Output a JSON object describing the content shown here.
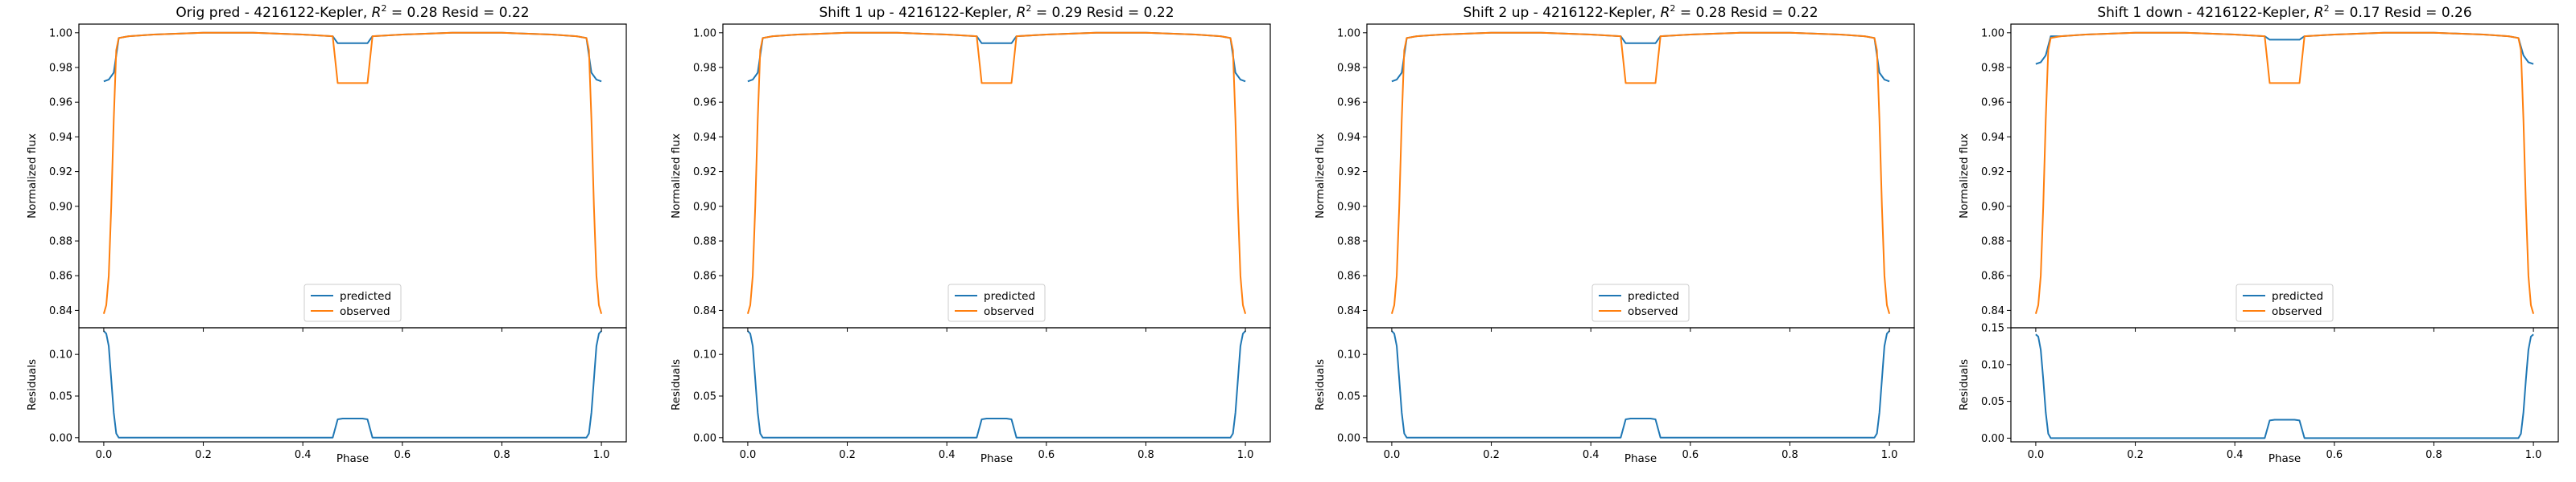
{
  "colors": {
    "predicted": "#1f77b4",
    "observed": "#ff7f0e"
  },
  "legend": {
    "placement": "lower center",
    "items": [
      "predicted",
      "observed"
    ]
  },
  "labels": {
    "xlabel": "Phase",
    "ylabel_top": "Normalized flux",
    "ylabel_bottom": "Residuals"
  },
  "chart_data": [
    {
      "type": "line",
      "title_prefix": "Orig pred - 4216122-Kepler, ",
      "r2": "0.28",
      "resid_text": " Resid = 0.22",
      "xlim": [
        -0.05,
        1.05
      ],
      "x_ticks": [
        "0.0",
        "0.2",
        "0.4",
        "0.6",
        "0.8",
        "1.0"
      ],
      "flux_ylim": [
        0.83,
        1.005
      ],
      "flux_ticks": [
        "0.84",
        "0.86",
        "0.88",
        "0.90",
        "0.92",
        "0.94",
        "0.96",
        "0.98",
        "1.00"
      ],
      "resid_ylim": [
        -0.005,
        0.132
      ],
      "resid_ticks": [
        "0.00",
        "0.05",
        "0.10"
      ],
      "series": [
        {
          "name": "predicted",
          "x": [
            0.0,
            0.01,
            0.02,
            0.03,
            0.05,
            0.1,
            0.2,
            0.3,
            0.4,
            0.46,
            0.47,
            0.48,
            0.5,
            0.52,
            0.53,
            0.54,
            0.6,
            0.7,
            0.8,
            0.9,
            0.95,
            0.97,
            0.98,
            0.99,
            1.0
          ],
          "y": [
            0.972,
            0.973,
            0.977,
            0.997,
            0.998,
            0.999,
            1.0,
            1.0,
            0.999,
            0.998,
            0.994,
            0.994,
            0.994,
            0.994,
            0.994,
            0.998,
            0.999,
            1.0,
            1.0,
            0.999,
            0.998,
            0.997,
            0.977,
            0.973,
            0.972
          ]
        },
        {
          "name": "observed",
          "x": [
            0.0,
            0.005,
            0.01,
            0.015,
            0.02,
            0.025,
            0.03,
            0.05,
            0.1,
            0.2,
            0.3,
            0.4,
            0.46,
            0.47,
            0.48,
            0.5,
            0.52,
            0.53,
            0.54,
            0.6,
            0.7,
            0.8,
            0.9,
            0.95,
            0.97,
            0.975,
            0.98,
            0.985,
            0.99,
            0.995,
            1.0
          ],
          "y": [
            0.838,
            0.843,
            0.86,
            0.9,
            0.95,
            0.99,
            0.997,
            0.998,
            0.999,
            1.0,
            1.0,
            0.999,
            0.998,
            0.971,
            0.971,
            0.971,
            0.971,
            0.971,
            0.998,
            0.999,
            1.0,
            1.0,
            0.999,
            0.998,
            0.997,
            0.99,
            0.95,
            0.9,
            0.86,
            0.843,
            0.838
          ]
        },
        {
          "name": "residual",
          "x": [
            0.0,
            0.005,
            0.01,
            0.015,
            0.02,
            0.025,
            0.03,
            0.05,
            0.2,
            0.4,
            0.46,
            0.47,
            0.48,
            0.5,
            0.52,
            0.53,
            0.54,
            0.6,
            0.8,
            0.95,
            0.97,
            0.975,
            0.98,
            0.985,
            0.99,
            0.995,
            1.0
          ],
          "y": [
            0.128,
            0.125,
            0.11,
            0.07,
            0.03,
            0.005,
            0.0,
            0.0,
            0.0,
            0.0,
            0.0,
            0.022,
            0.023,
            0.023,
            0.023,
            0.022,
            0.0,
            0.0,
            0.0,
            0.0,
            0.0,
            0.005,
            0.03,
            0.07,
            0.11,
            0.125,
            0.128
          ]
        }
      ]
    },
    {
      "type": "line",
      "title_prefix": "Shift 1 up - 4216122-Kepler, ",
      "r2": "0.29",
      "resid_text": " Resid = 0.22",
      "xlim": [
        -0.05,
        1.05
      ],
      "x_ticks": [
        "0.0",
        "0.2",
        "0.4",
        "0.6",
        "0.8",
        "1.0"
      ],
      "flux_ylim": [
        0.83,
        1.005
      ],
      "flux_ticks": [
        "0.84",
        "0.86",
        "0.88",
        "0.90",
        "0.92",
        "0.94",
        "0.96",
        "0.98",
        "1.00"
      ],
      "resid_ylim": [
        -0.005,
        0.132
      ],
      "resid_ticks": [
        "0.00",
        "0.05",
        "0.10"
      ],
      "series": [
        {
          "name": "predicted",
          "x": [
            0.0,
            0.01,
            0.02,
            0.03,
            0.05,
            0.1,
            0.2,
            0.3,
            0.4,
            0.46,
            0.47,
            0.48,
            0.5,
            0.52,
            0.53,
            0.54,
            0.6,
            0.7,
            0.8,
            0.9,
            0.95,
            0.97,
            0.98,
            0.99,
            1.0
          ],
          "y": [
            0.972,
            0.973,
            0.977,
            0.997,
            0.998,
            0.999,
            1.0,
            1.0,
            0.999,
            0.998,
            0.994,
            0.994,
            0.994,
            0.994,
            0.994,
            0.998,
            0.999,
            1.0,
            1.0,
            0.999,
            0.998,
            0.997,
            0.977,
            0.973,
            0.972
          ]
        },
        {
          "name": "observed",
          "x": [
            0.0,
            0.005,
            0.01,
            0.015,
            0.02,
            0.025,
            0.03,
            0.05,
            0.1,
            0.2,
            0.3,
            0.4,
            0.46,
            0.47,
            0.48,
            0.5,
            0.52,
            0.53,
            0.54,
            0.6,
            0.7,
            0.8,
            0.9,
            0.95,
            0.97,
            0.975,
            0.98,
            0.985,
            0.99,
            0.995,
            1.0
          ],
          "y": [
            0.838,
            0.843,
            0.86,
            0.9,
            0.95,
            0.99,
            0.997,
            0.998,
            0.999,
            1.0,
            1.0,
            0.999,
            0.998,
            0.971,
            0.971,
            0.971,
            0.971,
            0.971,
            0.998,
            0.999,
            1.0,
            1.0,
            0.999,
            0.998,
            0.997,
            0.99,
            0.95,
            0.9,
            0.86,
            0.843,
            0.838
          ]
        },
        {
          "name": "residual",
          "x": [
            0.0,
            0.005,
            0.01,
            0.015,
            0.02,
            0.025,
            0.03,
            0.05,
            0.2,
            0.4,
            0.46,
            0.47,
            0.48,
            0.5,
            0.52,
            0.53,
            0.54,
            0.6,
            0.8,
            0.95,
            0.97,
            0.975,
            0.98,
            0.985,
            0.99,
            0.995,
            1.0
          ],
          "y": [
            0.128,
            0.125,
            0.11,
            0.07,
            0.03,
            0.005,
            0.0,
            0.0,
            0.0,
            0.0,
            0.0,
            0.022,
            0.023,
            0.023,
            0.023,
            0.022,
            0.0,
            0.0,
            0.0,
            0.0,
            0.0,
            0.005,
            0.03,
            0.07,
            0.11,
            0.125,
            0.128
          ]
        }
      ]
    },
    {
      "type": "line",
      "title_prefix": "Shift 2 up - 4216122-Kepler, ",
      "r2": "0.28",
      "resid_text": " Resid = 0.22",
      "xlim": [
        -0.05,
        1.05
      ],
      "x_ticks": [
        "0.0",
        "0.2",
        "0.4",
        "0.6",
        "0.8",
        "1.0"
      ],
      "flux_ylim": [
        0.83,
        1.005
      ],
      "flux_ticks": [
        "0.84",
        "0.86",
        "0.88",
        "0.90",
        "0.92",
        "0.94",
        "0.96",
        "0.98",
        "1.00"
      ],
      "resid_ylim": [
        -0.005,
        0.132
      ],
      "resid_ticks": [
        "0.00",
        "0.05",
        "0.10"
      ],
      "series": [
        {
          "name": "predicted",
          "x": [
            0.0,
            0.01,
            0.02,
            0.03,
            0.05,
            0.1,
            0.2,
            0.3,
            0.4,
            0.46,
            0.47,
            0.48,
            0.5,
            0.52,
            0.53,
            0.54,
            0.6,
            0.7,
            0.8,
            0.9,
            0.95,
            0.97,
            0.98,
            0.99,
            1.0
          ],
          "y": [
            0.972,
            0.973,
            0.977,
            0.997,
            0.998,
            0.999,
            1.0,
            1.0,
            0.999,
            0.998,
            0.994,
            0.994,
            0.994,
            0.994,
            0.994,
            0.998,
            0.999,
            1.0,
            1.0,
            0.999,
            0.998,
            0.997,
            0.977,
            0.973,
            0.972
          ]
        },
        {
          "name": "observed",
          "x": [
            0.0,
            0.005,
            0.01,
            0.015,
            0.02,
            0.025,
            0.03,
            0.05,
            0.1,
            0.2,
            0.3,
            0.4,
            0.46,
            0.47,
            0.48,
            0.5,
            0.52,
            0.53,
            0.54,
            0.6,
            0.7,
            0.8,
            0.9,
            0.95,
            0.97,
            0.975,
            0.98,
            0.985,
            0.99,
            0.995,
            1.0
          ],
          "y": [
            0.838,
            0.843,
            0.86,
            0.9,
            0.95,
            0.99,
            0.997,
            0.998,
            0.999,
            1.0,
            1.0,
            0.999,
            0.998,
            0.971,
            0.971,
            0.971,
            0.971,
            0.971,
            0.998,
            0.999,
            1.0,
            1.0,
            0.999,
            0.998,
            0.997,
            0.99,
            0.95,
            0.9,
            0.86,
            0.843,
            0.838
          ]
        },
        {
          "name": "residual",
          "x": [
            0.0,
            0.005,
            0.01,
            0.015,
            0.02,
            0.025,
            0.03,
            0.05,
            0.2,
            0.4,
            0.46,
            0.47,
            0.48,
            0.5,
            0.52,
            0.53,
            0.54,
            0.6,
            0.8,
            0.95,
            0.97,
            0.975,
            0.98,
            0.985,
            0.99,
            0.995,
            1.0
          ],
          "y": [
            0.128,
            0.125,
            0.11,
            0.07,
            0.03,
            0.005,
            0.0,
            0.0,
            0.0,
            0.0,
            0.0,
            0.022,
            0.023,
            0.023,
            0.023,
            0.022,
            0.0,
            0.0,
            0.0,
            0.0,
            0.0,
            0.005,
            0.03,
            0.07,
            0.11,
            0.125,
            0.128
          ]
        }
      ]
    },
    {
      "type": "line",
      "title_prefix": "Shift 1 down - 4216122-Kepler, ",
      "r2": "0.17",
      "resid_text": " Resid = 0.26",
      "xlim": [
        -0.05,
        1.05
      ],
      "x_ticks": [
        "0.0",
        "0.2",
        "0.4",
        "0.6",
        "0.8",
        "1.0"
      ],
      "flux_ylim": [
        0.83,
        1.005
      ],
      "flux_ticks": [
        "0.84",
        "0.86",
        "0.88",
        "0.90",
        "0.92",
        "0.94",
        "0.96",
        "0.98",
        "1.00"
      ],
      "resid_ylim": [
        -0.005,
        0.15
      ],
      "resid_ticks": [
        "0.00",
        "0.05",
        "0.10",
        "0.15"
      ],
      "series": [
        {
          "name": "predicted",
          "x": [
            0.0,
            0.01,
            0.02,
            0.03,
            0.05,
            0.1,
            0.2,
            0.3,
            0.4,
            0.46,
            0.47,
            0.48,
            0.5,
            0.52,
            0.53,
            0.54,
            0.6,
            0.7,
            0.8,
            0.9,
            0.95,
            0.97,
            0.98,
            0.99,
            1.0
          ],
          "y": [
            0.982,
            0.983,
            0.987,
            0.998,
            0.998,
            0.999,
            1.0,
            1.0,
            0.999,
            0.998,
            0.996,
            0.996,
            0.996,
            0.996,
            0.996,
            0.998,
            0.999,
            1.0,
            1.0,
            0.999,
            0.998,
            0.997,
            0.987,
            0.983,
            0.982
          ]
        },
        {
          "name": "observed",
          "x": [
            0.0,
            0.005,
            0.01,
            0.015,
            0.02,
            0.025,
            0.03,
            0.05,
            0.1,
            0.2,
            0.3,
            0.4,
            0.46,
            0.47,
            0.48,
            0.5,
            0.52,
            0.53,
            0.54,
            0.6,
            0.7,
            0.8,
            0.9,
            0.95,
            0.97,
            0.975,
            0.98,
            0.985,
            0.99,
            0.995,
            1.0
          ],
          "y": [
            0.838,
            0.843,
            0.86,
            0.9,
            0.95,
            0.99,
            0.997,
            0.998,
            0.999,
            1.0,
            1.0,
            0.999,
            0.998,
            0.971,
            0.971,
            0.971,
            0.971,
            0.971,
            0.998,
            0.999,
            1.0,
            1.0,
            0.999,
            0.998,
            0.997,
            0.99,
            0.95,
            0.9,
            0.86,
            0.843,
            0.838
          ]
        },
        {
          "name": "residual",
          "x": [
            0.0,
            0.005,
            0.01,
            0.015,
            0.02,
            0.025,
            0.03,
            0.05,
            0.2,
            0.4,
            0.46,
            0.47,
            0.48,
            0.5,
            0.52,
            0.53,
            0.54,
            0.6,
            0.8,
            0.95,
            0.97,
            0.975,
            0.98,
            0.985,
            0.99,
            0.995,
            1.0
          ],
          "y": [
            0.141,
            0.138,
            0.12,
            0.08,
            0.035,
            0.006,
            0.0,
            0.0,
            0.0,
            0.0,
            0.0,
            0.024,
            0.025,
            0.025,
            0.025,
            0.024,
            0.0,
            0.0,
            0.0,
            0.0,
            0.0,
            0.006,
            0.035,
            0.08,
            0.12,
            0.138,
            0.141
          ]
        }
      ]
    }
  ]
}
